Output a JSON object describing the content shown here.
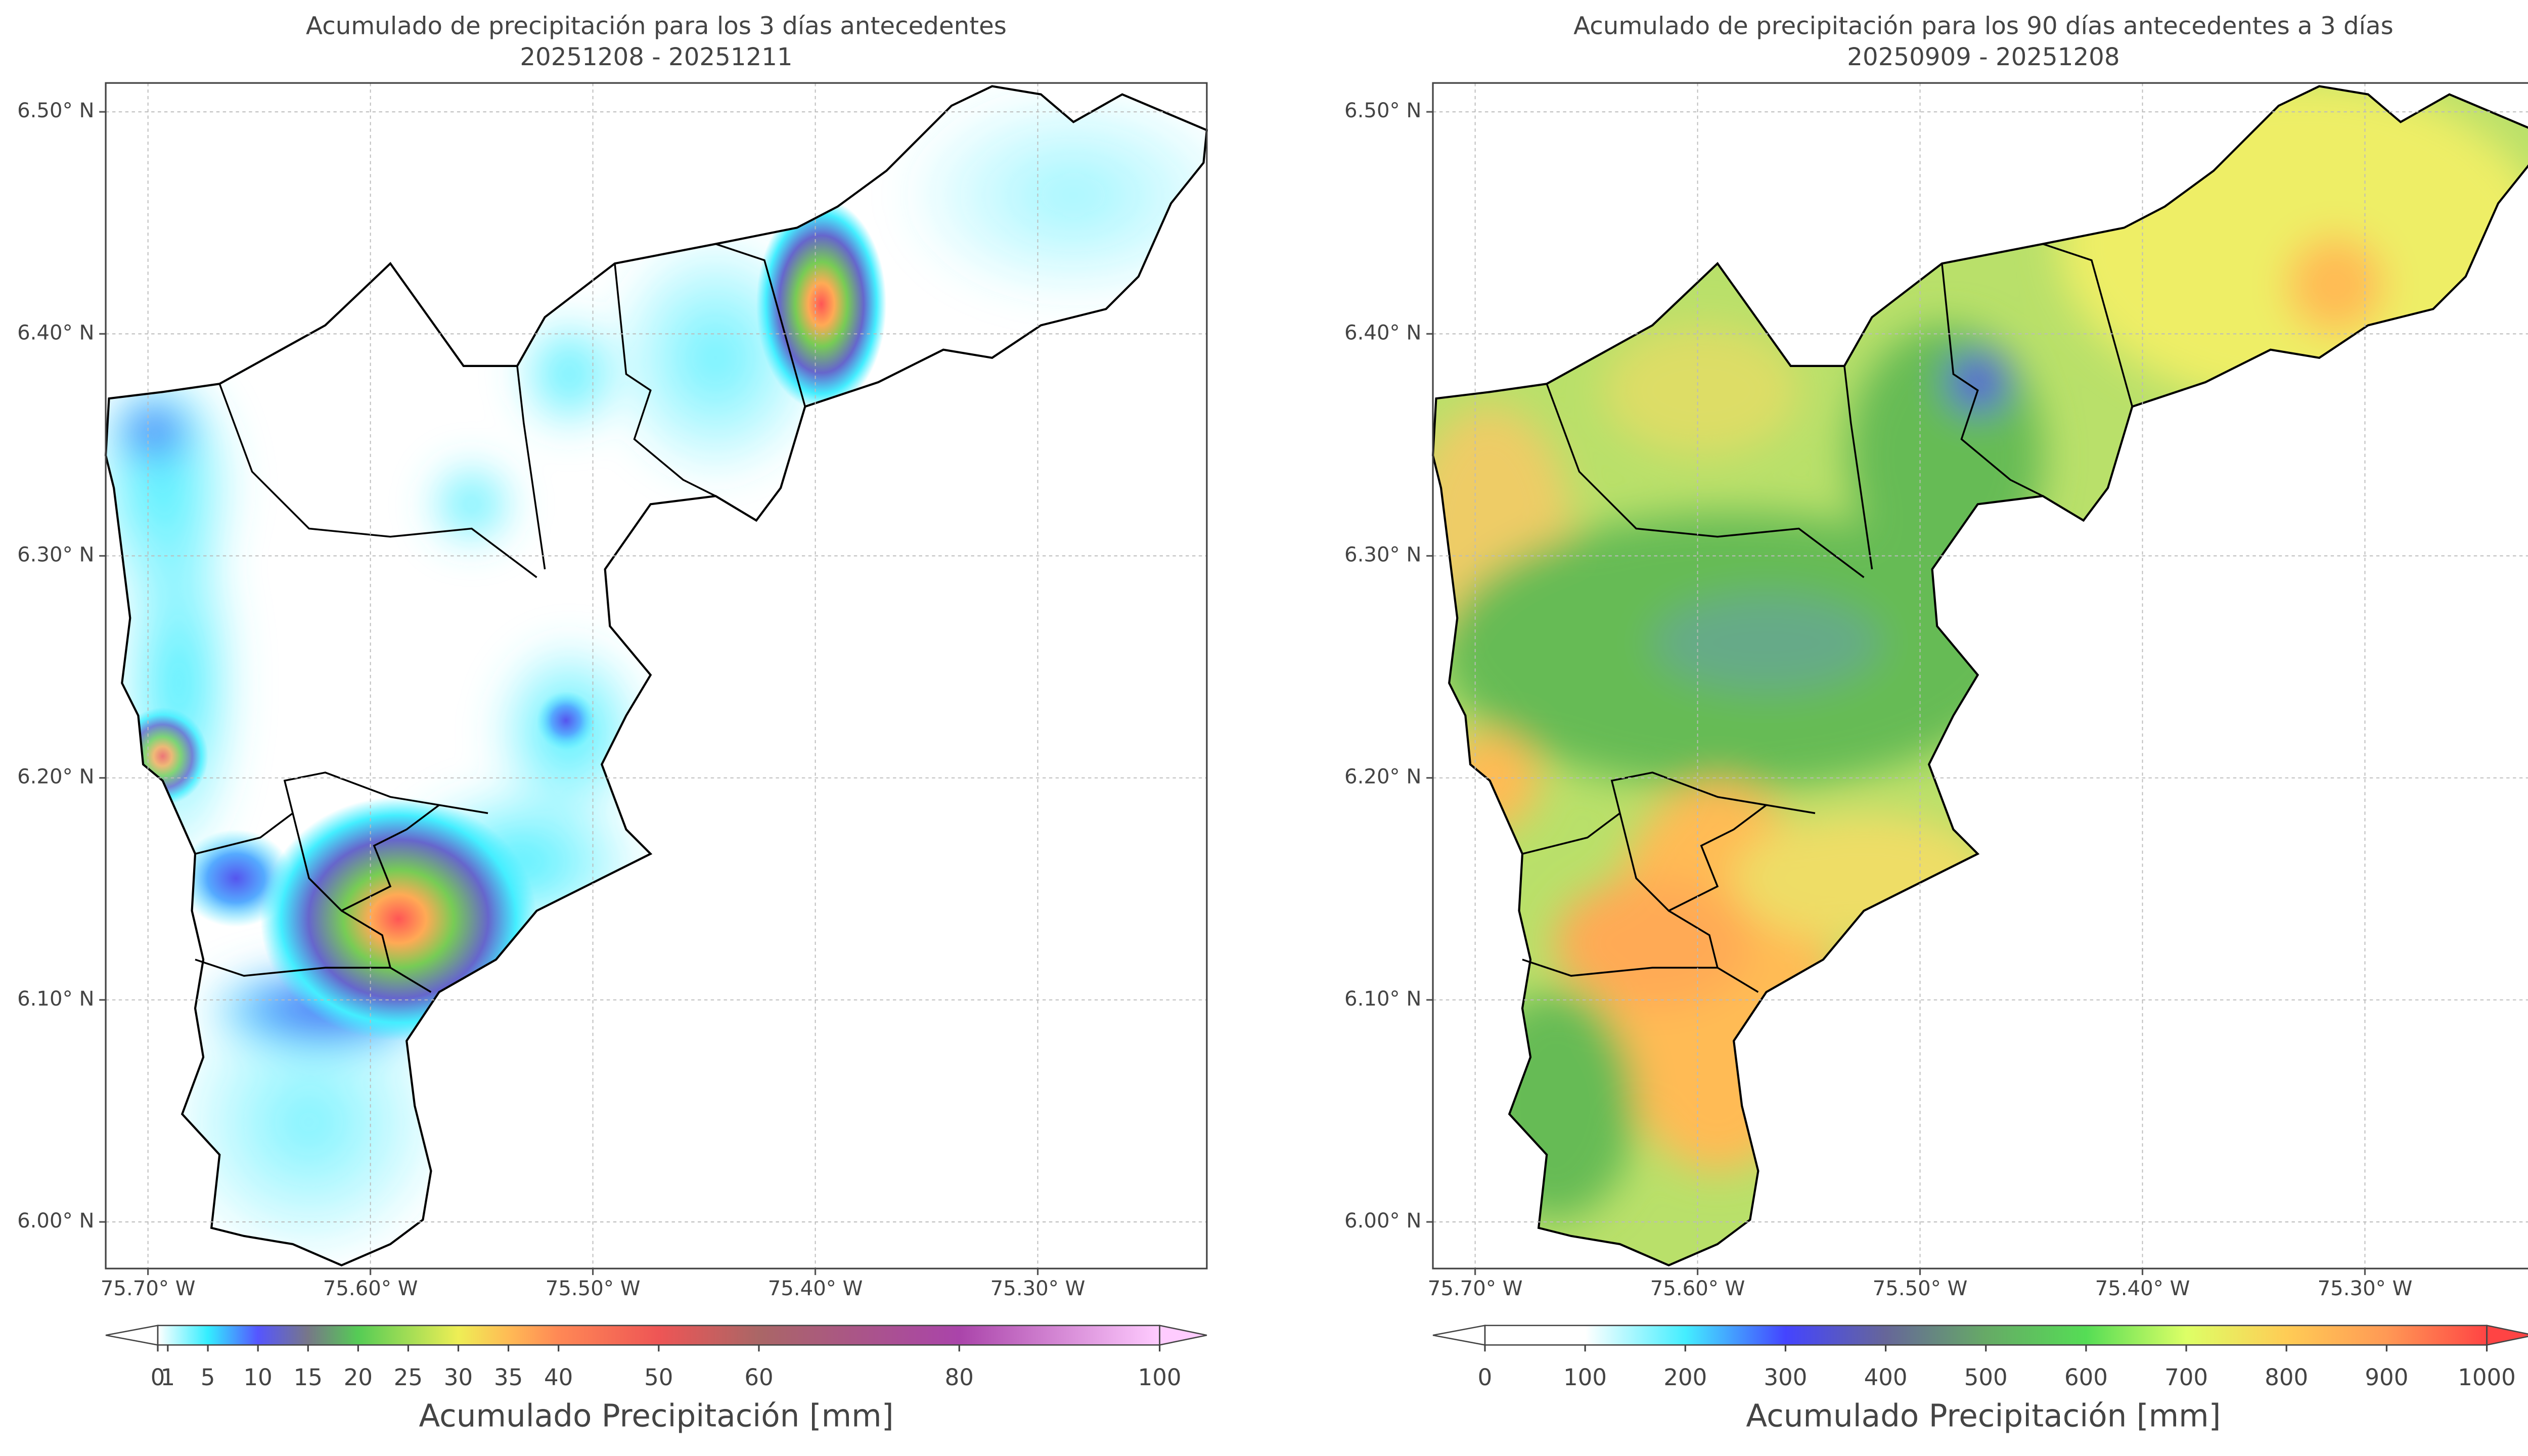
{
  "panels": [
    {
      "title": "Acumulado de precipitación para los 3 días antecedentes",
      "subtitle": "20251208 - 20251211",
      "xlim": [
        -75.719,
        -75.224
      ],
      "ylim": [
        5.979,
        6.513
      ],
      "xticks": [
        {
          "value": -75.7,
          "label": "75.70° W"
        },
        {
          "value": -75.6,
          "label": "75.60° W"
        },
        {
          "value": -75.5,
          "label": "75.50° W"
        },
        {
          "value": -75.4,
          "label": "75.40° W"
        },
        {
          "value": -75.3,
          "label": "75.30° W"
        }
      ],
      "yticks": [
        {
          "value": 6.0,
          "label": "6.00° N"
        },
        {
          "value": 6.1,
          "label": "6.10° N"
        },
        {
          "value": 6.2,
          "label": "6.20° N"
        },
        {
          "value": 6.3,
          "label": "6.30° N"
        },
        {
          "value": 6.4,
          "label": "6.40° N"
        },
        {
          "value": 6.5,
          "label": "6.50° N"
        }
      ],
      "colorbar": {
        "lim": [
          0,
          100
        ],
        "ticks": [
          0,
          1,
          5,
          10,
          15,
          20,
          25,
          30,
          35,
          40,
          50,
          60,
          80,
          100
        ],
        "label": "Acumulado Precipitación [mm]"
      }
    },
    {
      "title": "Acumulado de precipitación para los 90 días antecedentes a 3 días",
      "subtitle": "20250909 - 20251208",
      "xlim": [
        -75.719,
        -75.224
      ],
      "ylim": [
        5.979,
        6.513
      ],
      "xticks": [
        {
          "value": -75.7,
          "label": "75.70° W"
        },
        {
          "value": -75.6,
          "label": "75.60° W"
        },
        {
          "value": -75.5,
          "label": "75.50° W"
        },
        {
          "value": -75.4,
          "label": "75.40° W"
        },
        {
          "value": -75.3,
          "label": "75.30° W"
        }
      ],
      "yticks": [
        {
          "value": 6.0,
          "label": "6.00° N"
        },
        {
          "value": 6.1,
          "label": "6.10° N"
        },
        {
          "value": 6.2,
          "label": "6.20° N"
        },
        {
          "value": 6.3,
          "label": "6.30° N"
        },
        {
          "value": 6.4,
          "label": "6.40° N"
        },
        {
          "value": 6.5,
          "label": "6.50° N"
        }
      ],
      "colorbar": {
        "lim": [
          0,
          1000
        ],
        "ticks": [
          0,
          100,
          200,
          300,
          400,
          500,
          600,
          700,
          800,
          900,
          1000
        ],
        "label": "Acumulado Precipitación [mm]"
      }
    }
  ]
}
